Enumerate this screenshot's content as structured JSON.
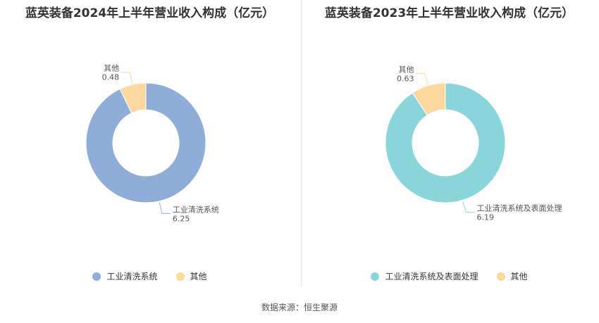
{
  "colors": {
    "primary_2024": "#8fadd9",
    "primary_2023": "#88d6d9",
    "other": "#fcd89c",
    "text": "#333333"
  },
  "source": "数据来源：恒生聚源",
  "chart_data": [
    {
      "type": "pie",
      "title": "蓝英装备2024年上半年营业收入构成（亿元）",
      "slices": [
        {
          "name": "工业清洗系统",
          "value": 6.25,
          "color": "#8fadd9"
        },
        {
          "name": "其他",
          "value": 0.48,
          "color": "#fcd89c"
        }
      ],
      "legend": "bottom"
    },
    {
      "type": "pie",
      "title": "蓝英装备2023年上半年营业收入构成（亿元）",
      "slices": [
        {
          "name": "工业清洗系统及表面处理",
          "value": 6.19,
          "color": "#88d6d9"
        },
        {
          "name": "其他",
          "value": 0.63,
          "color": "#fcd89c"
        }
      ],
      "legend": "bottom"
    }
  ]
}
